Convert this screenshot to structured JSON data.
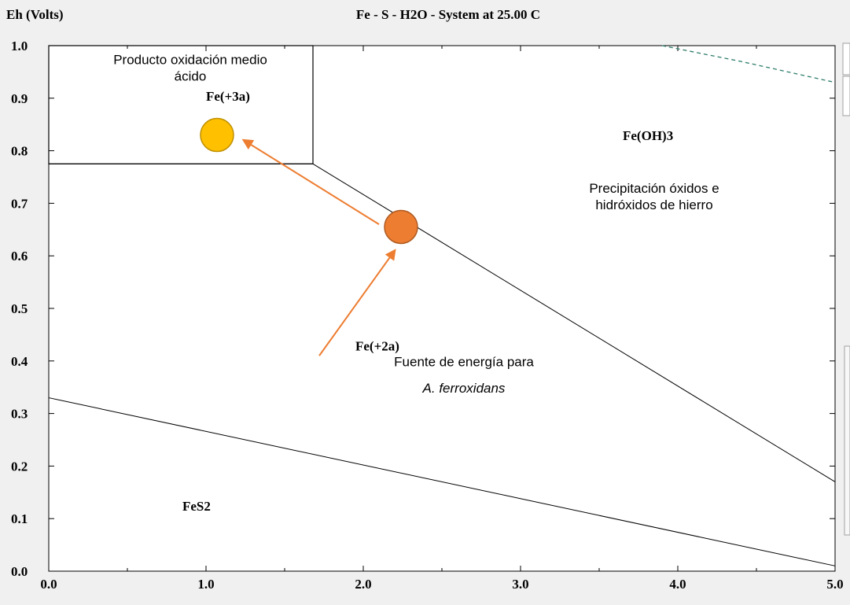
{
  "chart_data": {
    "type": "line",
    "title": "Fe - S - H2O - System at 25.00 C",
    "ylabel": "Eh (Volts)",
    "xlabel": "",
    "xlim": [
      0,
      5
    ],
    "ylim": [
      0,
      1
    ],
    "x_ticks": [
      "0.0",
      "1.0",
      "2.0",
      "3.0",
      "4.0",
      "5.0"
    ],
    "y_ticks": [
      "0.0",
      "0.1",
      "0.2",
      "0.3",
      "0.4",
      "0.5",
      "0.6",
      "0.7",
      "0.8",
      "0.9",
      "1.0"
    ],
    "grid": false,
    "boundaries": [
      {
        "points": [
          [
            0,
            0.775
          ],
          [
            1.68,
            0.775
          ]
        ]
      },
      {
        "points": [
          [
            1.68,
            0.775
          ],
          [
            1.68,
            1.0
          ]
        ]
      },
      {
        "points": [
          [
            1.68,
            0.775
          ],
          [
            5.0,
            0.17
          ]
        ]
      },
      {
        "points": [
          [
            0,
            0.33
          ],
          [
            5.0,
            0.01
          ]
        ]
      }
    ],
    "water_limit": {
      "points": [
        [
          3.9,
          1.0
        ],
        [
          4.4,
          0.97
        ],
        [
          5.0,
          0.93
        ]
      ],
      "color": "#2e7d6b"
    },
    "regions": [
      {
        "label": "Fe(+3a)",
        "x": 1.0,
        "y": 0.895
      },
      {
        "label": "Fe(OH)3",
        "x": 3.65,
        "y": 0.82
      },
      {
        "label": "Fe(+2a)",
        "x": 1.95,
        "y": 0.42
      },
      {
        "label": "FeS2",
        "x": 0.85,
        "y": 0.115
      }
    ],
    "markers": [
      {
        "x": 1.07,
        "y": 0.83,
        "color": "#ffc000",
        "stroke": "#bf9000"
      },
      {
        "x": 2.24,
        "y": 0.655,
        "color": "#ed7d31",
        "stroke": "#ae5a21"
      }
    ],
    "arrows": [
      {
        "from": [
          2.1,
          0.66
        ],
        "to": [
          1.24,
          0.82
        ],
        "color": "#ed7d31"
      },
      {
        "from": [
          1.72,
          0.41
        ],
        "to": [
          2.2,
          0.61
        ],
        "color": "#ed7d31"
      }
    ],
    "annotations": [
      {
        "lines": [
          "Producto oxidación medio",
          "ácido"
        ],
        "x": 0.9,
        "y": 0.965,
        "italic": false
      },
      {
        "lines": [
          "Precipitación óxidos e",
          "hidróxidos de hierro"
        ],
        "x": 3.85,
        "y": 0.72,
        "italic": false
      },
      {
        "lines": [
          "Fuente de energía para"
        ],
        "x": 2.64,
        "y": 0.39,
        "italic": false
      },
      {
        "lines": [
          "A. ferroxidans"
        ],
        "x": 2.64,
        "y": 0.34,
        "italic": true
      }
    ],
    "annotation_box": {
      "x0": 0,
      "x1": 1.68,
      "y0": 0.775,
      "y1": 1.0
    }
  },
  "colors": {
    "plot_bg": "#ffffff",
    "window_bg": "#f0f0f0",
    "axis": "#000000"
  }
}
